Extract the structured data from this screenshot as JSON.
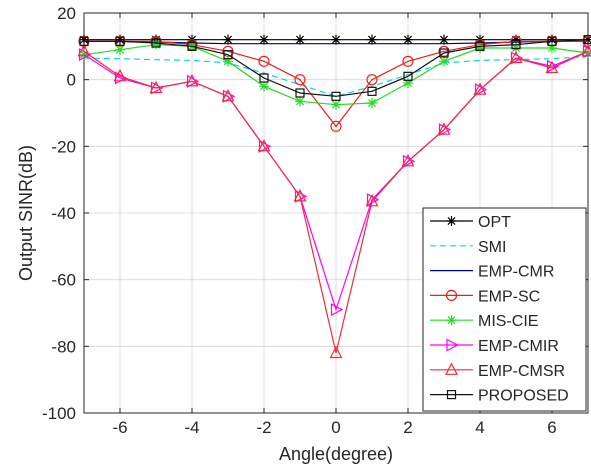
{
  "chart_data": {
    "type": "line",
    "title": "",
    "xlabel": "Angle(degree)",
    "ylabel": "Output SINR(dB)",
    "xlim": [
      -7,
      7
    ],
    "ylim": [
      -100,
      20
    ],
    "xticks": [
      -6,
      -4,
      -2,
      0,
      2,
      4,
      6
    ],
    "yticks": [
      20,
      0,
      -20,
      -40,
      -60,
      -80,
      -100
    ],
    "grid": true,
    "legend_position": "bottom-right",
    "x": [
      -7,
      -6,
      -5,
      -4,
      -3,
      -2,
      -1,
      0,
      1,
      2,
      3,
      4,
      5,
      6,
      7
    ],
    "series": [
      {
        "name": "OPT",
        "color": "#000000",
        "marker": "asterisk",
        "dash": "",
        "values": [
          12,
          12,
          12,
          12,
          12,
          12,
          12,
          12,
          12,
          12,
          12,
          12,
          12,
          12,
          12
        ]
      },
      {
        "name": "SMI",
        "color": "#00d8e8",
        "marker": "none",
        "dash": "6,4",
        "values": [
          6.5,
          6.3,
          6,
          5.8,
          5,
          2,
          -1.5,
          -5,
          -2,
          1.5,
          5,
          5.8,
          6,
          6.3,
          7
        ]
      },
      {
        "name": "EMP-CMR",
        "color": "#00008b",
        "marker": "none",
        "dash": "",
        "values": [
          11.5,
          11.5,
          11.3,
          11,
          10.8,
          10.8,
          10.8,
          10.8,
          10.8,
          10.8,
          10.8,
          11,
          11.3,
          11.5,
          11.5
        ]
      },
      {
        "name": "EMP-SC",
        "color": "#e8201a",
        "marker": "circle",
        "dash": "",
        "values": [
          11.5,
          11.5,
          11.5,
          10.5,
          8.5,
          5.5,
          0,
          -14,
          0,
          5.5,
          8.5,
          10.5,
          11.5,
          11.5,
          11.5
        ]
      },
      {
        "name": "MIS-CIE",
        "color": "#22dd22",
        "marker": "asterisk",
        "dash": "",
        "values": [
          7.5,
          9,
          10.5,
          10,
          5.5,
          -2,
          -6.5,
          -7.5,
          -7,
          -1,
          5.5,
          9.5,
          9.5,
          9.5,
          8
        ]
      },
      {
        "name": "EMP-CMIR",
        "color": "#ff00ff",
        "marker": "triangle-right",
        "dash": "",
        "values": [
          7.5,
          0.5,
          -2.5,
          -0.5,
          -5,
          -20,
          -35,
          -69,
          -36,
          -24.5,
          -15,
          -3,
          6.5,
          4,
          8.5
        ]
      },
      {
        "name": "EMP-CMSR",
        "color": "#f22a3c",
        "marker": "triangle-up",
        "dash": "",
        "values": [
          8.5,
          1,
          -2.5,
          -0.5,
          -5,
          -20,
          -35,
          -82,
          -36.5,
          -24.5,
          -15,
          -3,
          6.5,
          3.5,
          8.5
        ]
      },
      {
        "name": "PROPOSED",
        "color": "#111111",
        "marker": "square",
        "dash": "",
        "values": [
          11.5,
          11.5,
          11,
          10,
          7.5,
          0.5,
          -4,
          -5,
          -3.5,
          1,
          8,
          10,
          10.5,
          11.5,
          12
        ]
      }
    ]
  }
}
